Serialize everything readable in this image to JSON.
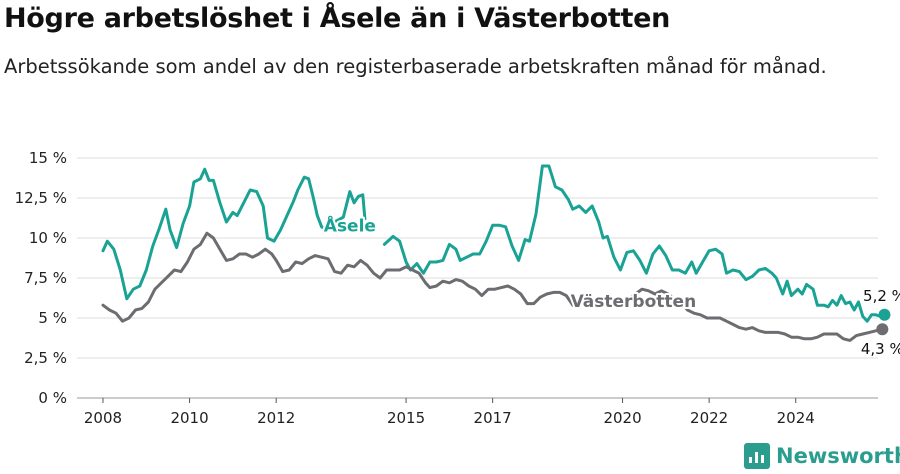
{
  "title": "Högre arbetslöshet i Åsele än i Västerbotten",
  "subtitle": "Arbetssökande som andel av den registerbaserade arbetskraften månad för månad.",
  "brand": {
    "name": "Newsworthy"
  },
  "colors": {
    "asele": "#1aa394",
    "vasterbotten": "#6d6c70",
    "grid": "#dddddd"
  },
  "chart_data": {
    "type": "line",
    "title": "Högre arbetslöshet i Åsele än i Västerbotten",
    "xlabel": "",
    "ylabel": "",
    "xlim": [
      2007.4,
      2025.9
    ],
    "ylim": [
      0,
      15
    ],
    "yticks": [
      0,
      2.5,
      5,
      7.5,
      10,
      12.5,
      15
    ],
    "ytick_labels": [
      "0 %",
      "2,5 %",
      "5 %",
      "7,5 %",
      "10 %",
      "12,5 %",
      "15 %"
    ],
    "xticks": [
      2008,
      2010,
      2012,
      2015,
      2017,
      2020,
      2022,
      2024
    ],
    "xtick_labels": [
      "2008",
      "2010",
      "2012",
      "2015",
      "2017",
      "2020",
      "2022",
      "2024"
    ],
    "grid": true,
    "series": [
      {
        "name": "Åsele",
        "label": "Åsele",
        "label_at": [
          2013.1,
          10.4
        ],
        "end_label": "5,2 %",
        "segments": [
          [
            [
              2008.0,
              9.2
            ],
            [
              2008.1,
              9.8
            ],
            [
              2008.25,
              9.3
            ],
            [
              2008.4,
              8.0
            ],
            [
              2008.55,
              6.2
            ],
            [
              2008.7,
              6.8
            ],
            [
              2008.85,
              7.0
            ],
            [
              2009.0,
              8.0
            ],
            [
              2009.15,
              9.5
            ],
            [
              2009.3,
              10.6
            ],
            [
              2009.45,
              11.8
            ],
            [
              2009.55,
              10.5
            ],
            [
              2009.7,
              9.4
            ],
            [
              2009.85,
              10.9
            ],
            [
              2010.0,
              12.0
            ],
            [
              2010.1,
              13.5
            ],
            [
              2010.25,
              13.7
            ],
            [
              2010.35,
              14.3
            ],
            [
              2010.45,
              13.6
            ],
            [
              2010.55,
              13.6
            ],
            [
              2010.7,
              12.2
            ],
            [
              2010.85,
              11.0
            ],
            [
              2011.0,
              11.6
            ],
            [
              2011.1,
              11.4
            ],
            [
              2011.25,
              12.2
            ],
            [
              2011.4,
              13.0
            ],
            [
              2011.55,
              12.9
            ],
            [
              2011.7,
              12.0
            ],
            [
              2011.8,
              10.0
            ],
            [
              2011.95,
              9.8
            ],
            [
              2012.1,
              10.5
            ],
            [
              2012.25,
              11.4
            ],
            [
              2012.4,
              12.3
            ],
            [
              2012.5,
              13.0
            ],
            [
              2012.65,
              13.8
            ],
            [
              2012.75,
              13.7
            ],
            [
              2012.85,
              12.6
            ],
            [
              2012.95,
              11.4
            ],
            [
              2013.05,
              10.7
            ],
            [
              2013.15,
              10.5
            ],
            [
              2013.25,
              11.3
            ],
            [
              2013.35,
              11.0
            ],
            [
              2013.55,
              11.3
            ],
            [
              2013.7,
              12.9
            ],
            [
              2013.8,
              12.2
            ],
            [
              2013.9,
              12.6
            ],
            [
              2014.0,
              12.7
            ],
            [
              2014.05,
              11.2
            ]
          ],
          [
            [
              2014.5,
              9.6
            ],
            [
              2014.7,
              10.1
            ],
            [
              2014.85,
              9.8
            ],
            [
              2015.0,
              8.5
            ],
            [
              2015.1,
              8.0
            ],
            [
              2015.25,
              8.4
            ],
            [
              2015.4,
              7.8
            ],
            [
              2015.55,
              8.5
            ],
            [
              2015.7,
              8.5
            ],
            [
              2015.85,
              8.6
            ],
            [
              2016.0,
              9.6
            ],
            [
              2016.15,
              9.3
            ],
            [
              2016.25,
              8.6
            ],
            [
              2016.4,
              8.8
            ],
            [
              2016.55,
              9.0
            ],
            [
              2016.7,
              9.0
            ],
            [
              2016.85,
              9.8
            ],
            [
              2017.0,
              10.8
            ],
            [
              2017.15,
              10.8
            ],
            [
              2017.3,
              10.7
            ],
            [
              2017.45,
              9.5
            ],
            [
              2017.6,
              8.6
            ],
            [
              2017.75,
              9.9
            ],
            [
              2017.85,
              9.8
            ],
            [
              2018.0,
              11.5
            ],
            [
              2018.15,
              14.5
            ],
            [
              2018.3,
              14.5
            ],
            [
              2018.45,
              13.2
            ],
            [
              2018.6,
              13.0
            ],
            [
              2018.75,
              12.4
            ],
            [
              2018.85,
              11.8
            ],
            [
              2019.0,
              12.0
            ],
            [
              2019.15,
              11.6
            ],
            [
              2019.3,
              12.0
            ],
            [
              2019.45,
              11.0
            ],
            [
              2019.55,
              10.0
            ],
            [
              2019.65,
              10.1
            ],
            [
              2019.8,
              8.8
            ],
            [
              2019.95,
              8.0
            ],
            [
              2020.1,
              9.1
            ],
            [
              2020.25,
              9.2
            ],
            [
              2020.4,
              8.6
            ],
            [
              2020.55,
              7.8
            ],
            [
              2020.7,
              9.0
            ],
            [
              2020.85,
              9.5
            ],
            [
              2021.0,
              8.9
            ],
            [
              2021.15,
              8.0
            ],
            [
              2021.3,
              8.0
            ],
            [
              2021.45,
              7.8
            ],
            [
              2021.6,
              8.5
            ],
            [
              2021.7,
              7.8
            ],
            [
              2021.85,
              8.5
            ],
            [
              2022.0,
              9.2
            ],
            [
              2022.15,
              9.3
            ],
            [
              2022.3,
              9.0
            ],
            [
              2022.4,
              7.8
            ],
            [
              2022.55,
              8.0
            ],
            [
              2022.7,
              7.9
            ],
            [
              2022.85,
              7.4
            ],
            [
              2023.0,
              7.6
            ],
            [
              2023.15,
              8.0
            ],
            [
              2023.3,
              8.1
            ],
            [
              2023.45,
              7.8
            ],
            [
              2023.55,
              7.5
            ],
            [
              2023.7,
              6.5
            ],
            [
              2023.8,
              7.3
            ],
            [
              2023.9,
              6.4
            ],
            [
              2024.05,
              6.8
            ],
            [
              2024.15,
              6.5
            ],
            [
              2024.25,
              7.1
            ],
            [
              2024.4,
              6.8
            ],
            [
              2024.5,
              5.8
            ],
            [
              2024.65,
              5.8
            ],
            [
              2024.75,
              5.7
            ],
            [
              2024.85,
              6.1
            ],
            [
              2024.95,
              5.8
            ],
            [
              2025.05,
              6.4
            ],
            [
              2025.15,
              5.9
            ],
            [
              2025.25,
              6.0
            ],
            [
              2025.35,
              5.5
            ],
            [
              2025.45,
              6.0
            ],
            [
              2025.55,
              5.1
            ],
            [
              2025.65,
              4.8
            ],
            [
              2025.75,
              5.2
            ],
            [
              2025.85,
              5.2
            ],
            [
              2025.95,
              5.1
            ],
            [
              2026.05,
              5.2
            ]
          ]
        ]
      },
      {
        "name": "Västerbotten",
        "label": "Västerbotten",
        "label_at": [
          2018.8,
          5.7
        ],
        "end_label": "4,3 %",
        "segments": [
          [
            [
              2008.0,
              5.8
            ],
            [
              2008.15,
              5.5
            ],
            [
              2008.3,
              5.3
            ],
            [
              2008.45,
              4.8
            ],
            [
              2008.6,
              5.0
            ],
            [
              2008.75,
              5.5
            ],
            [
              2008.9,
              5.6
            ],
            [
              2009.05,
              6.0
            ],
            [
              2009.2,
              6.8
            ],
            [
              2009.35,
              7.2
            ],
            [
              2009.5,
              7.6
            ],
            [
              2009.65,
              8.0
            ],
            [
              2009.8,
              7.9
            ],
            [
              2009.95,
              8.5
            ],
            [
              2010.1,
              9.3
            ],
            [
              2010.25,
              9.6
            ],
            [
              2010.4,
              10.3
            ],
            [
              2010.55,
              10.0
            ],
            [
              2010.7,
              9.3
            ],
            [
              2010.85,
              8.6
            ],
            [
              2011.0,
              8.7
            ],
            [
              2011.15,
              9.0
            ],
            [
              2011.3,
              9.0
            ],
            [
              2011.45,
              8.8
            ],
            [
              2011.6,
              9.0
            ],
            [
              2011.75,
              9.3
            ],
            [
              2011.9,
              9.0
            ],
            [
              2012.0,
              8.6
            ],
            [
              2012.15,
              7.9
            ],
            [
              2012.3,
              8.0
            ],
            [
              2012.45,
              8.5
            ],
            [
              2012.6,
              8.4
            ],
            [
              2012.75,
              8.7
            ],
            [
              2012.9,
              8.9
            ],
            [
              2013.05,
              8.8
            ],
            [
              2013.2,
              8.7
            ],
            [
              2013.35,
              7.9
            ],
            [
              2013.5,
              7.8
            ],
            [
              2013.65,
              8.3
            ],
            [
              2013.8,
              8.2
            ],
            [
              2013.95,
              8.6
            ],
            [
              2014.1,
              8.3
            ],
            [
              2014.25,
              7.8
            ],
            [
              2014.4,
              7.5
            ],
            [
              2014.55,
              8.0
            ],
            [
              2014.7,
              8.0
            ],
            [
              2014.85,
              8.0
            ],
            [
              2015.0,
              8.2
            ],
            [
              2015.15,
              8.0
            ],
            [
              2015.3,
              7.8
            ],
            [
              2015.45,
              7.2
            ],
            [
              2015.55,
              6.9
            ],
            [
              2015.7,
              7.0
            ],
            [
              2015.85,
              7.3
            ],
            [
              2016.0,
              7.2
            ],
            [
              2016.15,
              7.4
            ],
            [
              2016.3,
              7.3
            ],
            [
              2016.45,
              7.0
            ],
            [
              2016.6,
              6.8
            ],
            [
              2016.75,
              6.4
            ],
            [
              2016.9,
              6.8
            ],
            [
              2017.05,
              6.8
            ],
            [
              2017.2,
              6.9
            ],
            [
              2017.35,
              7.0
            ],
            [
              2017.5,
              6.8
            ],
            [
              2017.65,
              6.5
            ],
            [
              2017.8,
              5.9
            ],
            [
              2017.95,
              5.9
            ],
            [
              2018.1,
              6.3
            ],
            [
              2018.25,
              6.5
            ],
            [
              2018.4,
              6.6
            ],
            [
              2018.55,
              6.6
            ],
            [
              2018.7,
              6.4
            ],
            [
              2018.85,
              5.8
            ],
            [
              2019.0,
              5.8
            ]
          ],
          [
            [
              2020.15,
              6.2
            ],
            [
              2020.3,
              6.5
            ],
            [
              2020.45,
              6.8
            ],
            [
              2020.6,
              6.7
            ],
            [
              2020.75,
              6.5
            ],
            [
              2020.9,
              6.7
            ],
            [
              2021.05,
              6.5
            ],
            [
              2021.2,
              6.2
            ],
            [
              2021.35,
              6.0
            ],
            [
              2021.5,
              5.5
            ],
            [
              2021.65,
              5.3
            ],
            [
              2021.8,
              5.2
            ],
            [
              2021.95,
              5.0
            ],
            [
              2022.1,
              5.0
            ],
            [
              2022.25,
              5.0
            ],
            [
              2022.4,
              4.8
            ],
            [
              2022.55,
              4.6
            ],
            [
              2022.7,
              4.4
            ],
            [
              2022.85,
              4.3
            ],
            [
              2023.0,
              4.4
            ],
            [
              2023.15,
              4.2
            ],
            [
              2023.3,
              4.1
            ],
            [
              2023.45,
              4.1
            ],
            [
              2023.6,
              4.1
            ],
            [
              2023.75,
              4.0
            ],
            [
              2023.9,
              3.8
            ],
            [
              2024.05,
              3.8
            ],
            [
              2024.2,
              3.7
            ],
            [
              2024.35,
              3.7
            ],
            [
              2024.5,
              3.8
            ],
            [
              2024.65,
              4.0
            ],
            [
              2024.8,
              4.0
            ],
            [
              2024.95,
              4.0
            ],
            [
              2025.1,
              3.7
            ],
            [
              2025.25,
              3.6
            ],
            [
              2025.4,
              3.9
            ],
            [
              2025.55,
              4.0
            ],
            [
              2025.7,
              4.1
            ],
            [
              2025.85,
              4.2
            ],
            [
              2026.0,
              4.3
            ]
          ]
        ]
      }
    ]
  }
}
